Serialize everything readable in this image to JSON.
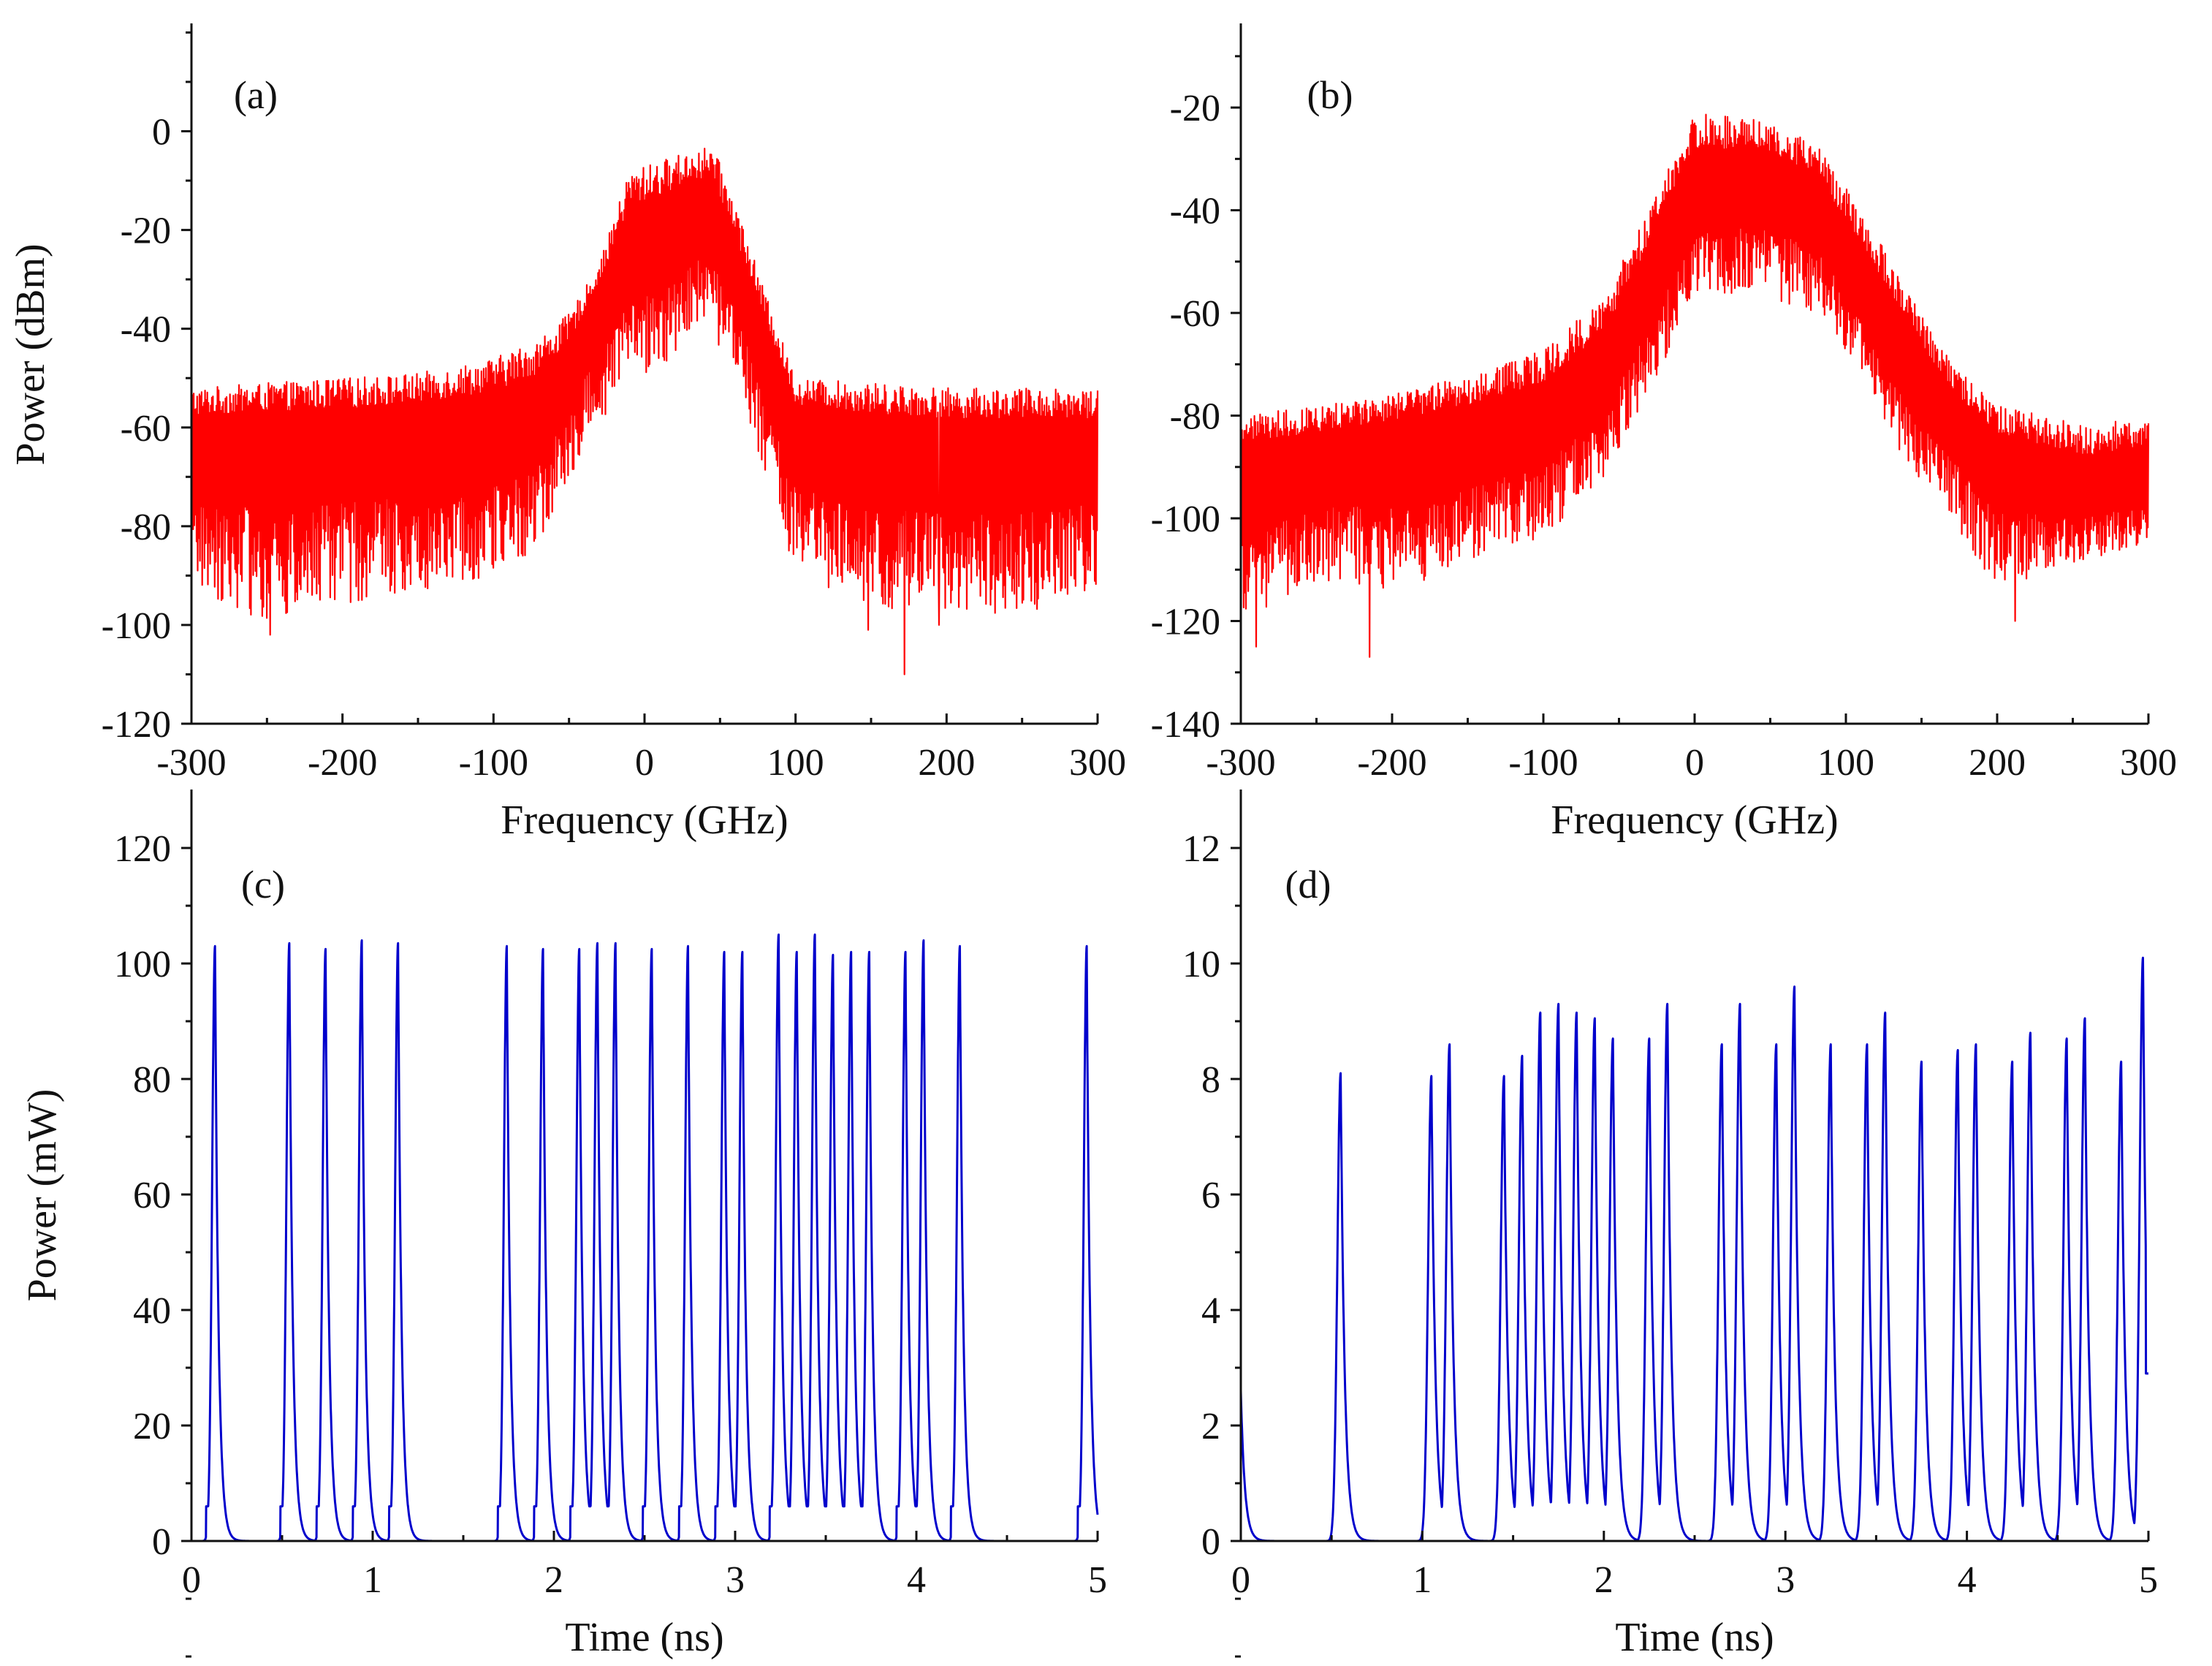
{
  "figure": {
    "colors": {
      "spectrum": "#ff0000",
      "pulse": "#0000cc",
      "axis": "#111111"
    }
  },
  "chart_data": [
    {
      "id": "a",
      "type": "line",
      "panel_label": "(a)",
      "xlabel": "Frequency (GHz)",
      "ylabel": "Power (dBm)",
      "xlim": [
        -300,
        300
      ],
      "ylim": [
        -120,
        10
      ],
      "xticks": [
        "-300",
        "-200",
        "-100",
        "0",
        "100",
        "200",
        "300"
      ],
      "yticks": [
        "0",
        "-20",
        "-40",
        "-60",
        "-80",
        "-100",
        "-120"
      ],
      "ytick_values": [
        0,
        -20,
        -40,
        -60,
        -80,
        -100,
        -120
      ],
      "xtick_values": [
        -300,
        -200,
        -100,
        0,
        100,
        200,
        300
      ],
      "grid": false,
      "series": [
        {
          "color": "#ff0000",
          "envelope": {
            "x": [
              -300,
              -250,
              -200,
              -150,
              -100,
              -70,
              -50,
              -30,
              -10,
              10,
              30,
              45,
              60,
              80,
              100,
              150,
              200,
              250,
              300
            ],
            "upper": [
              -52,
              -51,
              -50,
              -49,
              -46,
              -42,
              -37,
              -27,
              -8,
              -6,
              -4,
              -3,
              -14,
              -33,
              -50,
              -51,
              -52,
              -52,
              -52
            ],
            "center": [
              -65,
              -64,
              -64,
              -63,
              -61,
              -58,
              -50,
              -35,
              -25,
              -22,
              -18,
              -18,
              -30,
              -45,
              -62,
              -65,
              -66,
              -66,
              -66
            ],
            "lower": [
              -92,
              -100,
              -96,
              -93,
              -90,
              -85,
              -70,
              -60,
              -48,
              -50,
              -40,
              -42,
              -48,
              -70,
              -90,
              -98,
              -97,
              -98,
              -92
            ]
          },
          "comb_spacing": 10,
          "dips": [
            {
              "x": 172,
              "y": -110
            },
            {
              "x": -248,
              "y": -102
            },
            {
              "x": 148,
              "y": -101
            },
            {
              "x": 195,
              "y": -100
            }
          ]
        }
      ]
    },
    {
      "id": "b",
      "type": "line",
      "panel_label": "(b)",
      "xlabel": "Frequency (GHz)",
      "ylabel": "",
      "xlim": [
        -300,
        300
      ],
      "ylim": [
        -140,
        -15
      ],
      "xticks": [
        "-300",
        "-200",
        "-100",
        "0",
        "100",
        "200",
        "300"
      ],
      "yticks": [
        "-20",
        "-40",
        "-60",
        "-80",
        "-100",
        "-120",
        "-140"
      ],
      "ytick_values": [
        -20,
        -40,
        -60,
        -80,
        -100,
        -120,
        -140
      ],
      "xtick_values": [
        -300,
        -200,
        -100,
        0,
        100,
        200,
        300
      ],
      "grid": false,
      "series": [
        {
          "color": "#ff0000",
          "envelope": {
            "x": [
              -300,
              -250,
              -200,
              -150,
              -100,
              -60,
              -30,
              0,
              40,
              80,
              110,
              140,
              170,
              200,
              230,
              260,
              300
            ],
            "upper": [
              -80,
              -78,
              -76,
              -72,
              -67,
              -57,
              -40,
              -21,
              -22,
              -27,
              -40,
              -55,
              -70,
              -78,
              -80,
              -82,
              -80
            ],
            "center": [
              -92,
              -90,
              -88,
              -86,
              -82,
              -72,
              -55,
              -37,
              -36,
              -40,
              -55,
              -70,
              -82,
              -90,
              -93,
              -95,
              -93
            ],
            "lower": [
              -120,
              -112,
              -115,
              -108,
              -104,
              -92,
              -75,
              -58,
              -56,
              -60,
              -72,
              -90,
              -100,
              -115,
              -110,
              -108,
              -105
            ]
          },
          "comb_spacing": 2,
          "dips": [
            {
              "x": -215,
              "y": -127
            },
            {
              "x": -290,
              "y": -125
            },
            {
              "x": 212,
              "y": -120
            }
          ]
        }
      ]
    },
    {
      "id": "c",
      "type": "line",
      "panel_label": "(c)",
      "xlabel": "Time (ns)",
      "ylabel": "Power (mW)",
      "xlim": [
        0,
        5
      ],
      "ylim": [
        0,
        120
      ],
      "xticks": [
        "0",
        "1",
        "2",
        "3",
        "4",
        "5"
      ],
      "yticks": [
        "0",
        "20",
        "40",
        "60",
        "80",
        "100",
        "120"
      ],
      "ytick_values": [
        0,
        20,
        40,
        60,
        80,
        100,
        120
      ],
      "xtick_values": [
        0,
        1,
        2,
        3,
        4,
        5
      ],
      "grid": false,
      "series": [
        {
          "color": "#0000cc",
          "pulse_width": 0.035,
          "baseline_pedestal": 6,
          "pulses": [
            {
              "t": 0.13,
              "p": 103
            },
            {
              "t": 0.54,
              "p": 103.5
            },
            {
              "t": 0.74,
              "p": 102.5
            },
            {
              "t": 0.94,
              "p": 104
            },
            {
              "t": 1.14,
              "p": 103.5
            },
            {
              "t": 1.74,
              "p": 103
            },
            {
              "t": 1.94,
              "p": 102.5
            },
            {
              "t": 2.14,
              "p": 102.5
            },
            {
              "t": 2.24,
              "p": 103.5
            },
            {
              "t": 2.34,
              "p": 103.5
            },
            {
              "t": 2.54,
              "p": 102.5
            },
            {
              "t": 2.74,
              "p": 103
            },
            {
              "t": 2.94,
              "p": 102
            },
            {
              "t": 3.04,
              "p": 102
            },
            {
              "t": 3.24,
              "p": 105
            },
            {
              "t": 3.34,
              "p": 102
            },
            {
              "t": 3.44,
              "p": 105
            },
            {
              "t": 3.54,
              "p": 101.5
            },
            {
              "t": 3.64,
              "p": 102
            },
            {
              "t": 3.74,
              "p": 102
            },
            {
              "t": 3.94,
              "p": 102
            },
            {
              "t": 4.04,
              "p": 104
            },
            {
              "t": 4.24,
              "p": 103
            },
            {
              "t": 4.94,
              "p": 103
            }
          ]
        }
      ]
    },
    {
      "id": "d",
      "type": "line",
      "panel_label": "(d)",
      "xlabel": "Time (ns)",
      "ylabel": "",
      "xlim": [
        0,
        5
      ],
      "ylim": [
        0,
        12
      ],
      "xticks": [
        "0",
        "1",
        "2",
        "3",
        "4",
        "5"
      ],
      "yticks": [
        "0",
        "2",
        "4",
        "6",
        "8",
        "10",
        "12"
      ],
      "ytick_values": [
        0,
        2,
        4,
        6,
        8,
        10,
        12
      ],
      "xtick_values": [
        0,
        1,
        2,
        3,
        4,
        5
      ],
      "grid": false,
      "series": [
        {
          "color": "#0000cc",
          "pulse_width": 0.04,
          "baseline_pedestal": 0,
          "pulses": [
            {
              "t": 0.0,
              "p": 2.6
            },
            {
              "t": 0.55,
              "p": 8.1
            },
            {
              "t": 1.05,
              "p": 8.05
            },
            {
              "t": 1.15,
              "p": 8.6
            },
            {
              "t": 1.45,
              "p": 8.05
            },
            {
              "t": 1.55,
              "p": 8.4
            },
            {
              "t": 1.65,
              "p": 9.15
            },
            {
              "t": 1.75,
              "p": 9.3
            },
            {
              "t": 1.85,
              "p": 9.15
            },
            {
              "t": 1.95,
              "p": 9.05
            },
            {
              "t": 2.05,
              "p": 8.7
            },
            {
              "t": 2.25,
              "p": 8.7
            },
            {
              "t": 2.35,
              "p": 9.3
            },
            {
              "t": 2.65,
              "p": 8.6
            },
            {
              "t": 2.75,
              "p": 9.3
            },
            {
              "t": 2.95,
              "p": 8.6
            },
            {
              "t": 3.05,
              "p": 9.6
            },
            {
              "t": 3.25,
              "p": 8.6
            },
            {
              "t": 3.45,
              "p": 8.6
            },
            {
              "t": 3.55,
              "p": 9.15
            },
            {
              "t": 3.75,
              "p": 8.3
            },
            {
              "t": 3.95,
              "p": 8.5
            },
            {
              "t": 4.05,
              "p": 8.6
            },
            {
              "t": 4.25,
              "p": 8.3
            },
            {
              "t": 4.35,
              "p": 8.8
            },
            {
              "t": 4.55,
              "p": 8.7
            },
            {
              "t": 4.65,
              "p": 9.05
            },
            {
              "t": 4.85,
              "p": 8.3
            },
            {
              "t": 4.97,
              "p": 10.1
            }
          ],
          "end_value": 2.9
        }
      ]
    }
  ]
}
